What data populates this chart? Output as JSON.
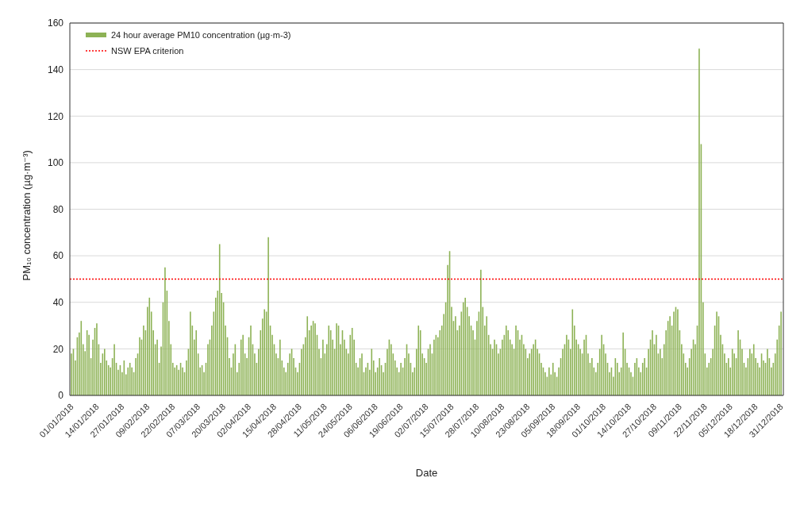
{
  "chart_data": {
    "type": "bar",
    "xlabel": "Date",
    "ylabel": "PM₁₀ concentration (µg·m⁻³)",
    "x": [
      "2018-01-01",
      "2018-01-02",
      "2018-01-03",
      "2018-01-04",
      "2018-01-05",
      "2018-01-06",
      "2018-01-07",
      "2018-01-08",
      "2018-01-09",
      "2018-01-10",
      "2018-01-11",
      "2018-01-12",
      "2018-01-13",
      "2018-01-14",
      "2018-01-15",
      "2018-01-16",
      "2018-01-17",
      "2018-01-18",
      "2018-01-19",
      "2018-01-20",
      "2018-01-21",
      "2018-01-22",
      "2018-01-23",
      "2018-01-24",
      "2018-01-25",
      "2018-01-26",
      "2018-01-27",
      "2018-01-28",
      "2018-01-29",
      "2018-01-30",
      "2018-01-31",
      "2018-02-01",
      "2018-02-02",
      "2018-02-03",
      "2018-02-04",
      "2018-02-05",
      "2018-02-06",
      "2018-02-07",
      "2018-02-08",
      "2018-02-09",
      "2018-02-10",
      "2018-02-11",
      "2018-02-12",
      "2018-02-13",
      "2018-02-14",
      "2018-02-15",
      "2018-02-16",
      "2018-02-17",
      "2018-02-18",
      "2018-02-19",
      "2018-02-20",
      "2018-02-21",
      "2018-02-22",
      "2018-02-23",
      "2018-02-24",
      "2018-02-25",
      "2018-02-26",
      "2018-02-27",
      "2018-02-28",
      "2018-03-01",
      "2018-03-02",
      "2018-03-03",
      "2018-03-04",
      "2018-03-05",
      "2018-03-06",
      "2018-03-07",
      "2018-03-08",
      "2018-03-09",
      "2018-03-10",
      "2018-03-11",
      "2018-03-12",
      "2018-03-13",
      "2018-03-14",
      "2018-03-15",
      "2018-03-16",
      "2018-03-17",
      "2018-03-18",
      "2018-03-19",
      "2018-03-20",
      "2018-03-21",
      "2018-03-22",
      "2018-03-23",
      "2018-03-24",
      "2018-03-25",
      "2018-03-26",
      "2018-03-27",
      "2018-03-28",
      "2018-03-29",
      "2018-03-30",
      "2018-03-31",
      "2018-04-01",
      "2018-04-02",
      "2018-04-03",
      "2018-04-04",
      "2018-04-05",
      "2018-04-06",
      "2018-04-07",
      "2018-04-08",
      "2018-04-09",
      "2018-04-10",
      "2018-04-11",
      "2018-04-12",
      "2018-04-13",
      "2018-04-14",
      "2018-04-15",
      "2018-04-16",
      "2018-04-17",
      "2018-04-18",
      "2018-04-19",
      "2018-04-20",
      "2018-04-21",
      "2018-04-22",
      "2018-04-23",
      "2018-04-24",
      "2018-04-25",
      "2018-04-26",
      "2018-04-27",
      "2018-04-28",
      "2018-04-29",
      "2018-04-30",
      "2018-05-01",
      "2018-05-02",
      "2018-05-03",
      "2018-05-04",
      "2018-05-05",
      "2018-05-06",
      "2018-05-07",
      "2018-05-08",
      "2018-05-09",
      "2018-05-10",
      "2018-05-11",
      "2018-05-12",
      "2018-05-13",
      "2018-05-14",
      "2018-05-15",
      "2018-05-16",
      "2018-05-17",
      "2018-05-18",
      "2018-05-19",
      "2018-05-20",
      "2018-05-21",
      "2018-05-22",
      "2018-05-23",
      "2018-05-24",
      "2018-05-25",
      "2018-05-26",
      "2018-05-27",
      "2018-05-28",
      "2018-05-29",
      "2018-05-30",
      "2018-05-31",
      "2018-06-01",
      "2018-06-02",
      "2018-06-03",
      "2018-06-04",
      "2018-06-05",
      "2018-06-06",
      "2018-06-07",
      "2018-06-08",
      "2018-06-09",
      "2018-06-10",
      "2018-06-11",
      "2018-06-12",
      "2018-06-13",
      "2018-06-14",
      "2018-06-15",
      "2018-06-16",
      "2018-06-17",
      "2018-06-18",
      "2018-06-19",
      "2018-06-20",
      "2018-06-21",
      "2018-06-22",
      "2018-06-23",
      "2018-06-24",
      "2018-06-25",
      "2018-06-26",
      "2018-06-27",
      "2018-06-28",
      "2018-06-29",
      "2018-06-30",
      "2018-07-01",
      "2018-07-02",
      "2018-07-03",
      "2018-07-04",
      "2018-07-05",
      "2018-07-06",
      "2018-07-07",
      "2018-07-08",
      "2018-07-09",
      "2018-07-10",
      "2018-07-11",
      "2018-07-12",
      "2018-07-13",
      "2018-07-14",
      "2018-07-15",
      "2018-07-16",
      "2018-07-17",
      "2018-07-18",
      "2018-07-19",
      "2018-07-20",
      "2018-07-21",
      "2018-07-22",
      "2018-07-23",
      "2018-07-24",
      "2018-07-25",
      "2018-07-26",
      "2018-07-27",
      "2018-07-28",
      "2018-07-29",
      "2018-07-30",
      "2018-07-31",
      "2018-08-01",
      "2018-08-02",
      "2018-08-03",
      "2018-08-04",
      "2018-08-05",
      "2018-08-06",
      "2018-08-07",
      "2018-08-08",
      "2018-08-09",
      "2018-08-10",
      "2018-08-11",
      "2018-08-12",
      "2018-08-13",
      "2018-08-14",
      "2018-08-15",
      "2018-08-16",
      "2018-08-17",
      "2018-08-18",
      "2018-08-19",
      "2018-08-20",
      "2018-08-21",
      "2018-08-22",
      "2018-08-23",
      "2018-08-24",
      "2018-08-25",
      "2018-08-26",
      "2018-08-27",
      "2018-08-28",
      "2018-08-29",
      "2018-08-30",
      "2018-08-31",
      "2018-09-01",
      "2018-09-02",
      "2018-09-03",
      "2018-09-04",
      "2018-09-05",
      "2018-09-06",
      "2018-09-07",
      "2018-09-08",
      "2018-09-09",
      "2018-09-10",
      "2018-09-11",
      "2018-09-12",
      "2018-09-13",
      "2018-09-14",
      "2018-09-15",
      "2018-09-16",
      "2018-09-17",
      "2018-09-18",
      "2018-09-19",
      "2018-09-20",
      "2018-09-21",
      "2018-09-22",
      "2018-09-23",
      "2018-09-24",
      "2018-09-25",
      "2018-09-26",
      "2018-09-27",
      "2018-09-28",
      "2018-09-29",
      "2018-09-30",
      "2018-10-01",
      "2018-10-02",
      "2018-10-03",
      "2018-10-04",
      "2018-10-05",
      "2018-10-06",
      "2018-10-07",
      "2018-10-08",
      "2018-10-09",
      "2018-10-10",
      "2018-10-11",
      "2018-10-12",
      "2018-10-13",
      "2018-10-14",
      "2018-10-15",
      "2018-10-16",
      "2018-10-17",
      "2018-10-18",
      "2018-10-19",
      "2018-10-20",
      "2018-10-21",
      "2018-10-22",
      "2018-10-23",
      "2018-10-24",
      "2018-10-25",
      "2018-10-26",
      "2018-10-27",
      "2018-10-28",
      "2018-10-29",
      "2018-10-30",
      "2018-10-31",
      "2018-11-01",
      "2018-11-02",
      "2018-11-03",
      "2018-11-04",
      "2018-11-05",
      "2018-11-06",
      "2018-11-07",
      "2018-11-08",
      "2018-11-09",
      "2018-11-10",
      "2018-11-11",
      "2018-11-12",
      "2018-11-13",
      "2018-11-14",
      "2018-11-15",
      "2018-11-16",
      "2018-11-17",
      "2018-11-18",
      "2018-11-19",
      "2018-11-20",
      "2018-11-21",
      "2018-11-22",
      "2018-11-23",
      "2018-11-24",
      "2018-11-25",
      "2018-11-26",
      "2018-11-27",
      "2018-11-28",
      "2018-11-29",
      "2018-11-30",
      "2018-12-01",
      "2018-12-02",
      "2018-12-03",
      "2018-12-04",
      "2018-12-05",
      "2018-12-06",
      "2018-12-07",
      "2018-12-08",
      "2018-12-09",
      "2018-12-10",
      "2018-12-11",
      "2018-12-12",
      "2018-12-13",
      "2018-12-14",
      "2018-12-15",
      "2018-12-16",
      "2018-12-17",
      "2018-12-18",
      "2018-12-19",
      "2018-12-20",
      "2018-12-21",
      "2018-12-22",
      "2018-12-23",
      "2018-12-24",
      "2018-12-25",
      "2018-12-26",
      "2018-12-27",
      "2018-12-28",
      "2018-12-29",
      "2018-12-30",
      "2018-12-31"
    ],
    "series": [
      {
        "name": "24 hour average PM10 concentration (µg·m-3)",
        "color": "#8db255",
        "values": [
          18,
          20,
          15,
          25,
          27,
          32,
          22,
          19,
          28,
          26,
          16,
          24,
          29,
          31,
          22,
          14,
          18,
          20,
          15,
          13,
          12,
          16,
          22,
          14,
          11,
          13,
          10,
          15,
          9,
          12,
          14,
          12,
          10,
          16,
          18,
          25,
          24,
          30,
          28,
          38,
          42,
          36,
          28,
          22,
          24,
          14,
          21,
          40,
          55,
          45,
          32,
          22,
          14,
          12,
          13,
          11,
          14,
          12,
          10,
          15,
          20,
          36,
          30,
          24,
          28,
          18,
          12,
          13,
          10,
          14,
          22,
          24,
          30,
          36,
          42,
          45,
          65,
          44,
          40,
          30,
          25,
          16,
          12,
          18,
          22,
          10,
          14,
          24,
          26,
          18,
          16,
          25,
          30,
          22,
          18,
          14,
          20,
          28,
          33,
          37,
          36,
          68,
          30,
          26,
          22,
          18,
          16,
          24,
          15,
          12,
          10,
          14,
          18,
          20,
          16,
          12,
          10,
          14,
          20,
          22,
          25,
          34,
          28,
          30,
          32,
          31,
          26,
          20,
          16,
          24,
          18,
          22,
          30,
          28,
          24,
          20,
          31,
          30,
          22,
          28,
          24,
          20,
          18,
          26,
          29,
          24,
          14,
          12,
          16,
          18,
          10,
          12,
          14,
          11,
          20,
          15,
          10,
          12,
          16,
          13,
          10,
          14,
          20,
          24,
          22,
          18,
          15,
          12,
          10,
          14,
          12,
          16,
          22,
          18,
          14,
          10,
          12,
          20,
          30,
          28,
          18,
          16,
          14,
          20,
          22,
          18,
          24,
          26,
          25,
          28,
          30,
          35,
          40,
          56,
          62,
          38,
          32,
          34,
          28,
          30,
          36,
          40,
          42,
          38,
          34,
          30,
          28,
          24,
          32,
          36,
          54,
          38,
          30,
          34,
          26,
          22,
          20,
          24,
          22,
          18,
          20,
          24,
          26,
          30,
          28,
          24,
          22,
          20,
          30,
          28,
          24,
          26,
          22,
          20,
          16,
          18,
          20,
          22,
          24,
          20,
          18,
          14,
          12,
          10,
          8,
          12,
          9,
          14,
          10,
          8,
          12,
          16,
          20,
          22,
          26,
          24,
          20,
          37,
          30,
          24,
          22,
          20,
          18,
          24,
          26,
          18,
          14,
          16,
          12,
          10,
          14,
          20,
          26,
          22,
          18,
          14,
          10,
          12,
          8,
          16,
          14,
          10,
          12,
          27,
          20,
          14,
          12,
          10,
          8,
          14,
          16,
          12,
          10,
          14,
          16,
          12,
          20,
          24,
          28,
          22,
          26,
          18,
          20,
          16,
          22,
          28,
          32,
          34,
          30,
          36,
          38,
          37,
          28,
          22,
          18,
          14,
          12,
          16,
          20,
          24,
          22,
          30,
          149,
          108,
          40,
          18,
          12,
          14,
          16,
          20,
          30,
          36,
          34,
          26,
          22,
          18,
          14,
          16,
          12,
          20,
          18,
          16,
          28,
          24,
          20,
          14,
          12,
          16,
          20,
          18,
          22,
          16,
          14,
          12,
          18,
          15,
          14,
          20,
          16,
          12,
          14,
          18,
          24,
          30,
          36
        ]
      }
    ],
    "ref_lines": [
      {
        "axis": "y",
        "value": 50,
        "label": "NSW EPA criterion",
        "color": "#ff0000",
        "line_style": "dotted"
      }
    ],
    "xlim": [
      "2017-12-31",
      "2019-01-01"
    ],
    "xticks": [
      {
        "value": "2018-01-01",
        "label": "01/01/2018"
      },
      {
        "value": "2018-01-14",
        "label": "14/01/2018"
      },
      {
        "value": "2018-01-27",
        "label": "27/01/2018"
      },
      {
        "value": "2018-02-09",
        "label": "09/02/2018"
      },
      {
        "value": "2018-02-22",
        "label": "22/02/2018"
      },
      {
        "value": "2018-03-07",
        "label": "07/03/2018"
      },
      {
        "value": "2018-03-20",
        "label": "20/03/2018"
      },
      {
        "value": "2018-04-02",
        "label": "02/04/2018"
      },
      {
        "value": "2018-04-15",
        "label": "15/04/2018"
      },
      {
        "value": "2018-04-28",
        "label": "28/04/2018"
      },
      {
        "value": "2018-05-11",
        "label": "11/05/2018"
      },
      {
        "value": "2018-05-24",
        "label": "24/05/2018"
      },
      {
        "value": "2018-06-06",
        "label": "06/06/2018"
      },
      {
        "value": "2018-06-19",
        "label": "19/06/2018"
      },
      {
        "value": "2018-07-02",
        "label": "02/07/2018"
      },
      {
        "value": "2018-07-15",
        "label": "15/07/2018"
      },
      {
        "value": "2018-07-28",
        "label": "28/07/2018"
      },
      {
        "value": "2018-08-10",
        "label": "10/08/2018"
      },
      {
        "value": "2018-08-23",
        "label": "23/08/2018"
      },
      {
        "value": "2018-09-05",
        "label": "05/09/2018"
      },
      {
        "value": "2018-09-18",
        "label": "18/09/2018"
      },
      {
        "value": "2018-10-01",
        "label": "01/10/2018"
      },
      {
        "value": "2018-10-14",
        "label": "14/10/2018"
      },
      {
        "value": "2018-10-27",
        "label": "27/10/2018"
      },
      {
        "value": "2018-11-09",
        "label": "09/11/2018"
      },
      {
        "value": "2018-11-22",
        "label": "22/11/2018"
      },
      {
        "value": "2018-12-05",
        "label": "05/12/2018"
      },
      {
        "value": "2018-12-18",
        "label": "18/12/2018"
      },
      {
        "value": "2018-12-31",
        "label": "31/12/2018"
      }
    ],
    "ylim": [
      0,
      160
    ],
    "yticks": [
      0,
      20,
      40,
      60,
      80,
      100,
      120,
      140,
      160
    ],
    "grid": "y",
    "legend": "top left"
  }
}
